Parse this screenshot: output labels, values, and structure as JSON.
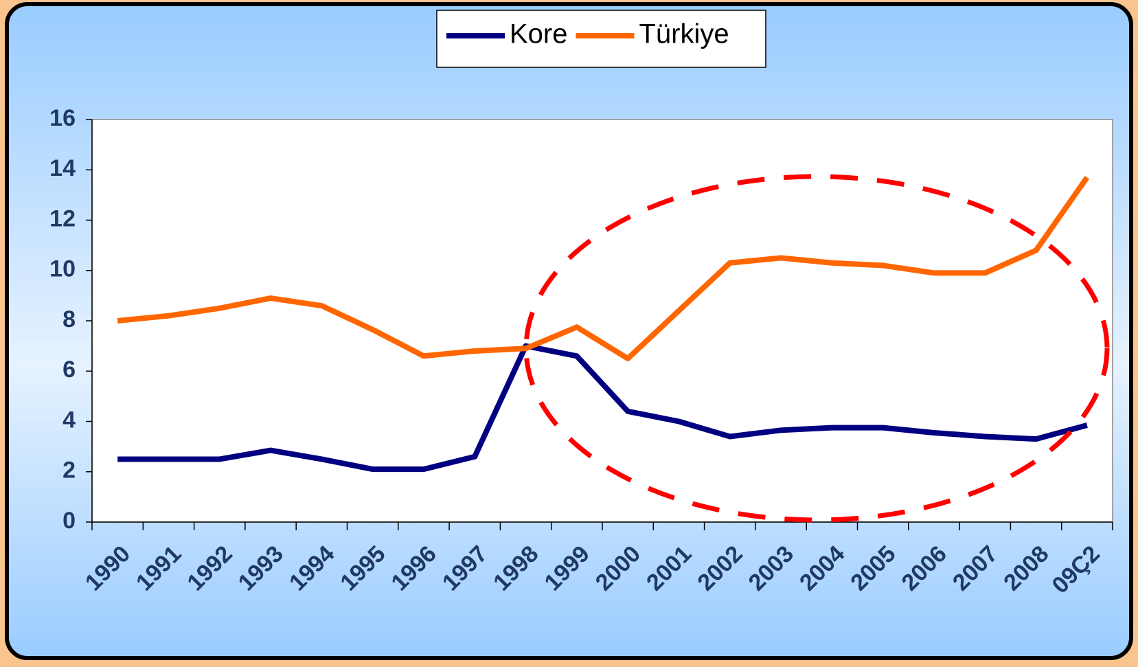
{
  "chart_data": {
    "type": "line",
    "categories": [
      "1990",
      "1991",
      "1992",
      "1993",
      "1994",
      "1995",
      "1996",
      "1997",
      "1998",
      "1999",
      "2000",
      "2001",
      "2002",
      "2003",
      "2004",
      "2005",
      "2006",
      "2007",
      "2008",
      "09Ç2"
    ],
    "series": [
      {
        "name": "Kore",
        "color": "#000080",
        "values": [
          2.5,
          2.5,
          2.5,
          2.85,
          2.5,
          2.1,
          2.1,
          2.6,
          7.0,
          6.6,
          4.4,
          4.0,
          3.4,
          3.65,
          3.75,
          3.75,
          3.55,
          3.4,
          3.3,
          3.85
        ]
      },
      {
        "name": "Türkiye",
        "color": "#ff6600",
        "values": [
          8.0,
          8.2,
          8.5,
          8.9,
          8.6,
          7.65,
          6.6,
          6.8,
          6.9,
          7.75,
          6.5,
          8.4,
          10.3,
          10.5,
          10.3,
          10.2,
          9.9,
          9.9,
          10.8,
          13.7
        ]
      }
    ],
    "ylim": [
      0,
      16
    ],
    "yticks": [
      0,
      2,
      4,
      6,
      8,
      10,
      12,
      14,
      16
    ],
    "legend": "top"
  }
}
